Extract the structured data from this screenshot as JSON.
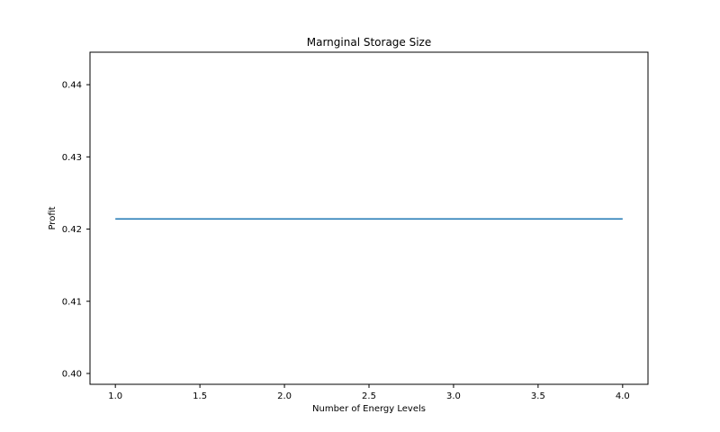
{
  "chart_data": {
    "type": "line",
    "title": "Marnginal Storage Size",
    "xlabel": "Number of Energy Levels",
    "ylabel": "Profit",
    "xlim": [
      0.85,
      4.15
    ],
    "ylim": [
      0.3985,
      0.4445
    ],
    "xticks": [
      1.0,
      1.5,
      2.0,
      2.5,
      3.0,
      3.5,
      4.0
    ],
    "xtick_labels": [
      "1.0",
      "1.5",
      "2.0",
      "2.5",
      "3.0",
      "3.5",
      "4.0"
    ],
    "yticks": [
      0.4,
      0.41,
      0.42,
      0.43,
      0.44
    ],
    "ytick_labels": [
      "0.40",
      "0.41",
      "0.42",
      "0.43",
      "0.44"
    ],
    "grid": false,
    "series": [
      {
        "color": "#1f77b4",
        "x": [
          1,
          2,
          3,
          4
        ],
        "y": [
          0.4214,
          0.4214,
          0.4214,
          0.4214
        ]
      }
    ]
  }
}
